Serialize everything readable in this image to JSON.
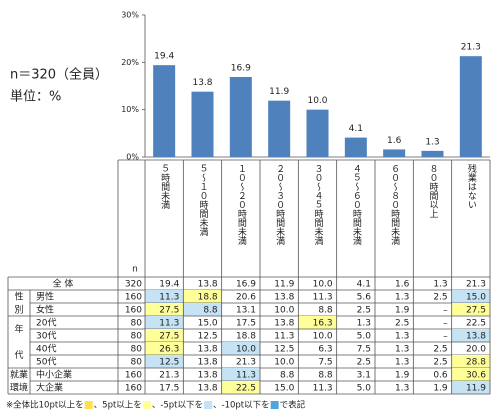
{
  "chart_data": {
    "type": "bar",
    "categories": [
      "５時間未満",
      "５～１０時間未満",
      "１０～２０時間未満",
      "２０～３０時間未満",
      "３０～４５時間未満",
      "４５～６０時間未満",
      "６０～８０時間未満",
      "８０時間以上",
      "残業はない"
    ],
    "values": [
      19.4,
      13.8,
      16.9,
      11.9,
      10.0,
      4.1,
      1.6,
      1.3,
      21.3
    ],
    "value_labels": [
      "19.4",
      "13.8",
      "16.9",
      "11.9",
      "10.0",
      "4.1",
      "1.6",
      "1.3",
      "21.3"
    ],
    "color": "#4f81bd",
    "ylim": [
      0,
      30
    ],
    "yticks": [
      {
        "value": 0,
        "label": "0%"
      },
      {
        "value": 10,
        "label": "10%"
      },
      {
        "value": 20,
        "label": "20%"
      },
      {
        "value": 30,
        "label": "30%"
      }
    ],
    "grid": false
  },
  "info": {
    "sample": "n＝320（全員）",
    "unit": "単位：%"
  },
  "table": {
    "n_header": "n",
    "highlight_colors": {
      "+10": "#ffe14d",
      "+5": "#ffff99",
      "-5": "#c5e3f5",
      "-10": "#4ea5dc"
    },
    "sections": [
      {
        "label": "全 体",
        "n": 320,
        "values": [
          "19.4",
          "13.8",
          "16.9",
          "11.9",
          "10.0",
          "4.1",
          "1.6",
          "1.3",
          "21.3"
        ]
      },
      {
        "label": [
          "性",
          "別"
        ],
        "rows": [
          {
            "label": "男性",
            "n": 160,
            "values": [
              "11.3",
              "18.8",
              "20.6",
              "13.8",
              "11.3",
              "5.6",
              "1.3",
              "2.5",
              "15.0"
            ],
            "highlights": [
              "-5",
              "+5",
              null,
              null,
              null,
              null,
              null,
              null,
              "-5"
            ]
          },
          {
            "label": "女性",
            "n": 160,
            "values": [
              "27.5",
              "8.8",
              "13.1",
              "10.0",
              "8.8",
              "2.5",
              "1.9",
              "–",
              "27.5"
            ],
            "highlights": [
              "+5",
              "-5",
              null,
              null,
              null,
              null,
              null,
              null,
              "+5"
            ]
          }
        ]
      },
      {
        "label": [
          "年",
          "代"
        ],
        "rows": [
          {
            "label": "20代",
            "n": 80,
            "values": [
              "11.3",
              "15.0",
              "17.5",
              "13.8",
              "16.3",
              "1.3",
              "2.5",
              "–",
              "22.5"
            ],
            "highlights": [
              "-5",
              null,
              null,
              null,
              "+5",
              null,
              null,
              null,
              null
            ]
          },
          {
            "label": "30代",
            "n": 80,
            "values": [
              "27.5",
              "12.5",
              "18.8",
              "11.3",
              "10.0",
              "5.0",
              "1.3",
              "–",
              "13.8"
            ],
            "highlights": [
              "+5",
              null,
              null,
              null,
              null,
              null,
              null,
              null,
              "-5"
            ]
          },
          {
            "label": "40代",
            "n": 80,
            "values": [
              "26.3",
              "13.8",
              "10.0",
              "12.5",
              "6.3",
              "7.5",
              "1.3",
              "2.5",
              "20.0"
            ],
            "highlights": [
              "+5",
              null,
              "-5",
              null,
              null,
              null,
              null,
              null,
              null
            ]
          },
          {
            "label": "50代",
            "n": 80,
            "values": [
              "12.5",
              "13.8",
              "21.3",
              "10.0",
              "7.5",
              "2.5",
              "1.3",
              "2.5",
              "28.8"
            ],
            "highlights": [
              "-5",
              null,
              null,
              null,
              null,
              null,
              null,
              null,
              "+5"
            ]
          }
        ]
      },
      {
        "label": [
          "就業",
          "環境"
        ],
        "rows": [
          {
            "label": "中小企業",
            "n": 160,
            "values": [
              "21.3",
              "13.8",
              "11.3",
              "8.8",
              "8.8",
              "3.1",
              "1.9",
              "0.6",
              "30.6"
            ],
            "highlights": [
              null,
              null,
              "-5",
              null,
              null,
              null,
              null,
              null,
              "+5"
            ]
          },
          {
            "label": "大企業",
            "n": 160,
            "values": [
              "17.5",
              "13.8",
              "22.5",
              "15.0",
              "11.3",
              "5.0",
              "1.3",
              "1.9",
              "11.9"
            ],
            "highlights": [
              null,
              null,
              "+5",
              null,
              null,
              null,
              null,
              null,
              "-5"
            ]
          }
        ]
      }
    ]
  },
  "footnote": {
    "parts": [
      "※全体比10pt以上を",
      "、5pt以上を",
      "、-5pt以下を",
      "、-10pt以下を",
      "で表記"
    ],
    "keys": [
      "+10",
      "+5",
      "-5",
      "-10"
    ]
  }
}
